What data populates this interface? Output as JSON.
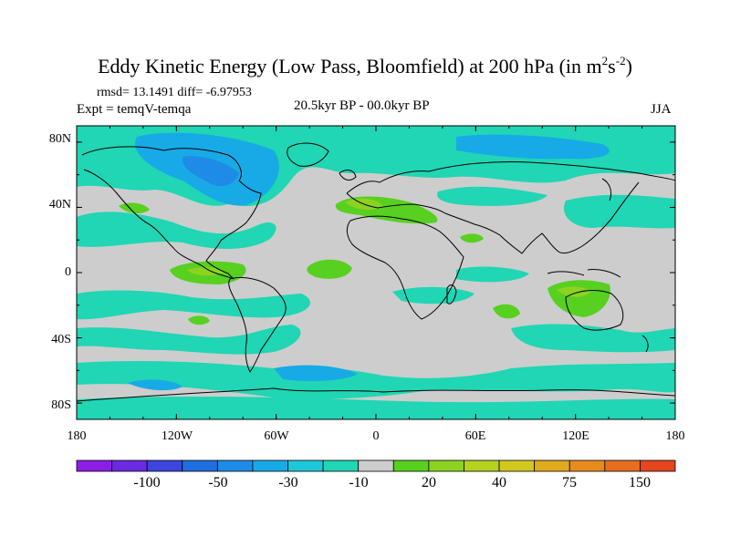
{
  "title": {
    "main_prefix": "Eddy Kinetic Energy (Low Pass, Bloomfield) at 200 hPa (in m",
    "sup1": "2",
    "mid": "s",
    "sup2": "-2",
    "suffix": ")"
  },
  "stats": "rmsd= 13.1491 diff= -6.97953",
  "experiment": "Expt = temqV-temqa",
  "period": "20.5kyr BP - 00.0kyr BP",
  "season": "JJA",
  "lat_labels": [
    "80N",
    "40N",
    "0",
    "40S",
    "80S"
  ],
  "lon_labels": [
    "180",
    "120W",
    "60W",
    "0",
    "60E",
    "120E",
    "180"
  ],
  "colorbar": {
    "colors": [
      "#8c1ee6",
      "#6a2ae0",
      "#3c46dc",
      "#1e6ee0",
      "#1e8ce6",
      "#18aae6",
      "#1ec8d8",
      "#20d6b4",
      "#cdcdcd",
      "#58d020",
      "#8cd220",
      "#b4d21e",
      "#d2c81e",
      "#e0aa1e",
      "#e68c1e",
      "#e66e1e",
      "#e4461e"
    ],
    "labels": [
      "-100",
      "-50",
      "-30",
      "-10",
      "20",
      "40",
      "75",
      "150"
    ]
  }
}
